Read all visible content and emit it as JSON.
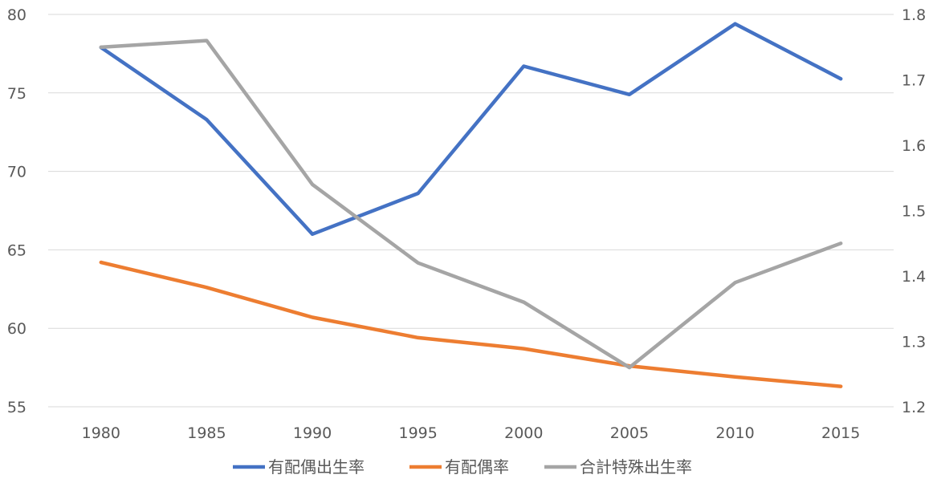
{
  "chart_data": {
    "type": "line",
    "title": "",
    "xlabel": "",
    "ylabel": "",
    "y2label": "",
    "categories": [
      "1980",
      "1985",
      "1990",
      "1995",
      "2000",
      "2005",
      "2010",
      "2015"
    ],
    "ylim": [
      55,
      80
    ],
    "yticks": [
      "55",
      "60",
      "65",
      "70",
      "75",
      "80"
    ],
    "y2lim": [
      1.2,
      1.8
    ],
    "y2ticks": [
      "1.2",
      "1.3",
      "1.4",
      "1.5",
      "1.6",
      "1.7",
      "1.8"
    ],
    "grid": true,
    "legend_position": "bottom",
    "series": [
      {
        "name": "有配偶出生率",
        "axis": "left",
        "color": "#4472C4",
        "values": [
          77.9,
          73.3,
          66.0,
          68.6,
          76.7,
          74.9,
          79.4,
          75.9
        ]
      },
      {
        "name": "有配偶率",
        "axis": "left",
        "color": "#ED7D31",
        "values": [
          64.2,
          62.6,
          60.7,
          59.4,
          58.7,
          57.6,
          56.9,
          56.3
        ]
      },
      {
        "name": "合計特殊出生率",
        "axis": "right",
        "color": "#A5A5A5",
        "values": [
          1.75,
          1.76,
          1.54,
          1.42,
          1.36,
          1.26,
          1.39,
          1.45
        ]
      }
    ]
  }
}
